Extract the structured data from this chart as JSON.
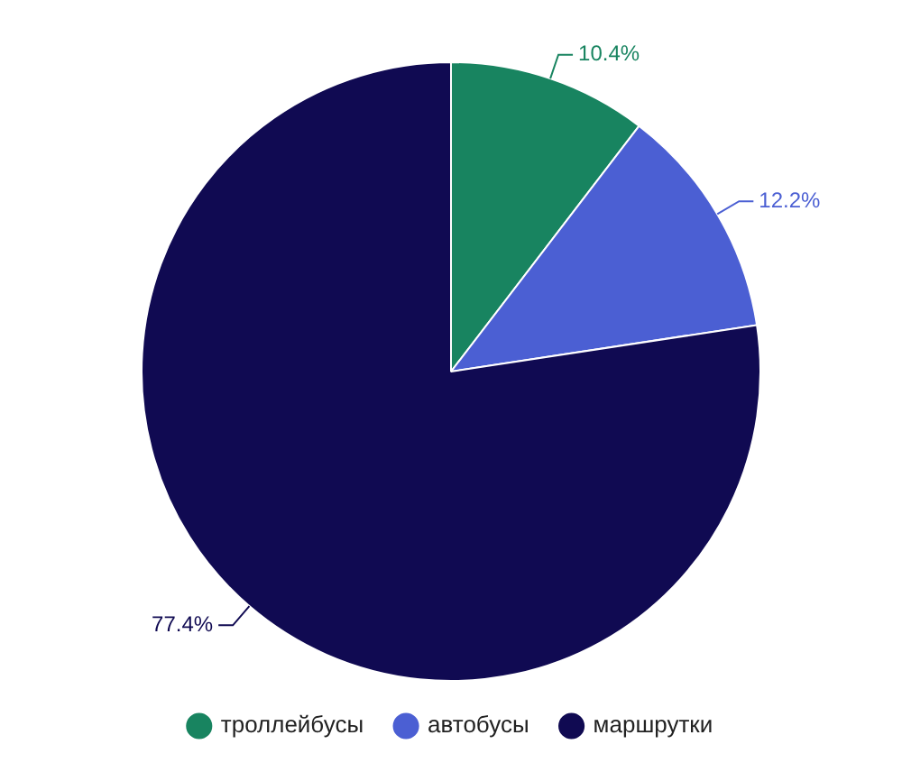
{
  "chart_data": {
    "type": "pie",
    "categories": [
      "троллейбусы",
      "автобусы",
      "маршрутки"
    ],
    "values": [
      10.4,
      12.2,
      77.4
    ],
    "colors": [
      "#188460",
      "#4b5fd3",
      "#100a52"
    ],
    "value_labels": [
      "10.4%",
      "12.2%",
      "77.4%"
    ],
    "legend": "bottom"
  }
}
